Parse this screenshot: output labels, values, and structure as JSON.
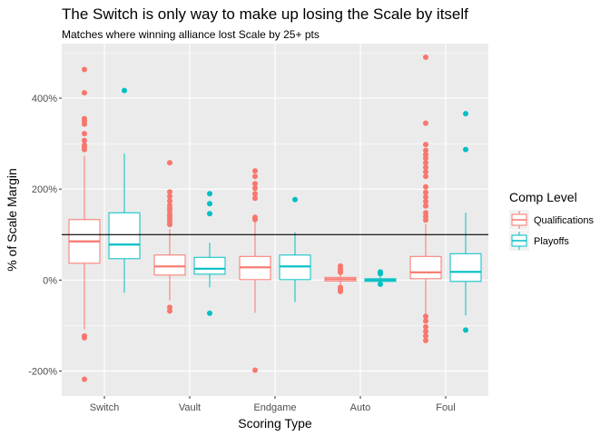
{
  "chart_data": {
    "type": "boxplot",
    "title": "The Switch is only way to make up losing the Scale by itself",
    "subtitle": "Matches where winning alliance lost Scale by 25+ pts",
    "xlabel": "Scoring Type",
    "ylabel": "% of Scale Margin",
    "ylim": [
      -255,
      520
    ],
    "y_ticks": [
      -200,
      0,
      200,
      400
    ],
    "y_tick_labels": [
      "-200%",
      "0%",
      "200%",
      "400%"
    ],
    "reference_line_y": 100,
    "grid": true,
    "legend_title": "Comp Level",
    "legend_position": "right",
    "categories": [
      "Switch",
      "Vault",
      "Endgame",
      "Auto",
      "Foul"
    ],
    "series": [
      {
        "name": "Qualifications",
        "color": "#F8766D",
        "boxes": [
          {
            "q1": 37,
            "median": 85,
            "q3": 133,
            "low": -108,
            "high": 273,
            "outliers": [
              463,
              412,
              355,
              350,
              343,
              322,
              307,
              297,
              292,
              287,
              -123,
              -127,
              -218
            ]
          },
          {
            "q1": 11,
            "median": 30,
            "q3": 55,
            "low": -45,
            "high": 112,
            "outliers": [
              258,
              194,
              184,
              174,
              164,
              158,
              152,
              144,
              139,
              134,
              128,
              122,
              -60,
              -68
            ]
          },
          {
            "q1": 1,
            "median": 28,
            "q3": 52,
            "low": -72,
            "high": 128,
            "outliers": [
              240,
              228,
              212,
              202,
              190,
              180,
              138,
              133,
              -198
            ]
          },
          {
            "q1": -2,
            "median": 2,
            "q3": 6,
            "low": -10,
            "high": 13,
            "outliers": [
              31,
              25,
              20,
              17,
              -16,
              -21,
              -25
            ]
          },
          {
            "q1": 3,
            "median": 17,
            "q3": 52,
            "low": -76,
            "high": 123,
            "outliers": [
              490,
              345,
              298,
              285,
              276,
              268,
              258,
              248,
              238,
              228,
              205,
              193,
              183,
              173,
              163,
              148,
              140,
              132,
              -80,
              -90,
              -103,
              -113,
              -123,
              -133
            ]
          }
        ]
      },
      {
        "name": "Playoffs",
        "color": "#00BFC4",
        "boxes": [
          {
            "q1": 47,
            "median": 78,
            "q3": 148,
            "low": -28,
            "high": 278,
            "outliers": [
              417
            ]
          },
          {
            "q1": 13,
            "median": 25,
            "q3": 50,
            "low": -16,
            "high": 82,
            "outliers": [
              190,
              168,
              146,
              -73
            ]
          },
          {
            "q1": 1,
            "median": 30,
            "q3": 55,
            "low": -48,
            "high": 105,
            "outliers": [
              177
            ]
          },
          {
            "q1": -3,
            "median": 0,
            "q3": 3,
            "low": -6,
            "high": 8,
            "outliers": [
              18,
              14,
              -9
            ]
          },
          {
            "q1": -3,
            "median": 18,
            "q3": 58,
            "low": -78,
            "high": 148,
            "outliers": [
              366,
              287,
              -110
            ]
          }
        ]
      }
    ]
  }
}
